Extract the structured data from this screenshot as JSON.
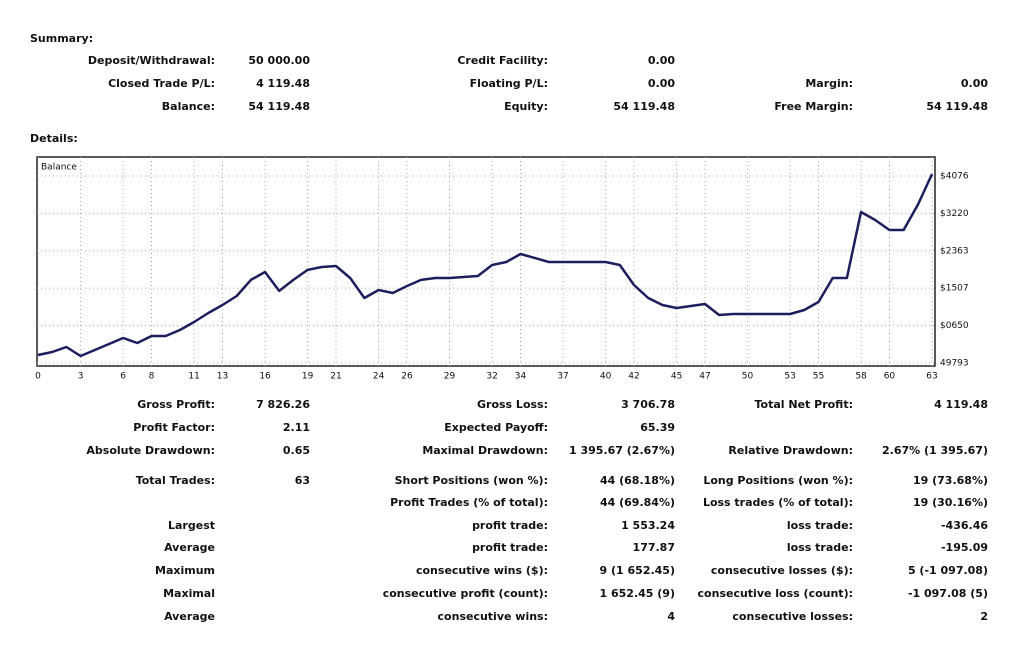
{
  "summary": {
    "title": "Summary:",
    "rows": [
      [
        "Deposit/Withdrawal:",
        "50 000.00",
        "Credit Facility:",
        "0.00",
        null,
        null
      ],
      [
        "Closed Trade P/L:",
        "4 119.48",
        "Floating P/L:",
        "0.00",
        "Margin:",
        "0.00"
      ],
      [
        "Balance:",
        "54 119.48",
        "Equity:",
        "54 119.48",
        "Free Margin:",
        "54 119.48"
      ]
    ]
  },
  "details": {
    "title": "Details:",
    "rows": [
      [
        "Gross Profit:",
        "7 826.26",
        "Gross Loss:",
        "3 706.78",
        "Total Net Profit:",
        "4 119.48"
      ],
      [
        "Profit Factor:",
        "2.11",
        "Expected Payoff:",
        "65.39",
        null,
        null
      ],
      [
        "Absolute Drawdown:",
        "0.65",
        "Maximal Drawdown:",
        "1 395.67 (2.67%)",
        "Relative Drawdown:",
        "2.67% (1 395.67)"
      ],
      [
        "Total Trades:",
        "63",
        "Short Positions (won %):",
        "44 (68.18%)",
        "Long Positions (won %):",
        "19 (73.68%)"
      ],
      [
        null,
        null,
        "Profit Trades (% of total):",
        "44 (69.84%)",
        "Loss trades (% of total):",
        "19 (30.16%)"
      ],
      [
        "Largest",
        null,
        "profit trade:",
        "1 553.24",
        "loss trade:",
        "-436.46"
      ],
      [
        "Average",
        null,
        "profit trade:",
        "177.87",
        "loss trade:",
        "-195.09"
      ],
      [
        "Maximum",
        null,
        "consecutive wins ($):",
        "9 (1 652.45)",
        "consecutive losses ($):",
        "5 (-1 097.08)"
      ],
      [
        "Maximal",
        null,
        "consecutive profit (count):",
        "1 652.45 (9)",
        "consecutive loss (count):",
        "-1 097.08 (5)"
      ],
      [
        "Average",
        null,
        "consecutive wins:",
        "4",
        "consecutive losses:",
        "2"
      ]
    ]
  },
  "chart_data": {
    "type": "line",
    "series": [
      {
        "name": "Balance",
        "color": "#1c1f5e",
        "values": [
          49976,
          50045,
          50160,
          49953,
          50091,
          50228,
          50366,
          50251,
          50412,
          50412,
          50549,
          50732,
          50939,
          51122,
          51328,
          51695,
          51878,
          51443,
          51695,
          51924,
          51992,
          52015,
          51740,
          51282,
          51465,
          51397,
          51557,
          51695,
          51740,
          51740,
          51763,
          51786,
          52038,
          52107,
          52290,
          52199,
          52107,
          52107,
          52107,
          52107,
          52107,
          52038,
          51580,
          51282,
          51122,
          51053,
          51099,
          51145,
          50893,
          50916,
          50916,
          50916,
          50916,
          50916,
          51007,
          51191,
          51740,
          51740,
          53252,
          53069,
          52840,
          52840,
          53413,
          54119.48
        ]
      }
    ],
    "xlim": [
      0,
      63
    ],
    "xticks": [
      0,
      3,
      6,
      8,
      11,
      13,
      16,
      19,
      21,
      24,
      26,
      29,
      32,
      34,
      37,
      40,
      42,
      45,
      47,
      50,
      53,
      55,
      58,
      60,
      63
    ],
    "ylim": [
      49724,
      54511
    ],
    "yticks": [
      49793,
      {
        "value": 50650,
        "label": "$0650"
      },
      {
        "value": 51507,
        "label": "$1507"
      },
      {
        "value": 52363,
        "label": "$2363"
      },
      {
        "value": 53220,
        "label": "$3220"
      },
      {
        "value": 54076,
        "label": "$4076"
      }
    ],
    "grid": true
  }
}
